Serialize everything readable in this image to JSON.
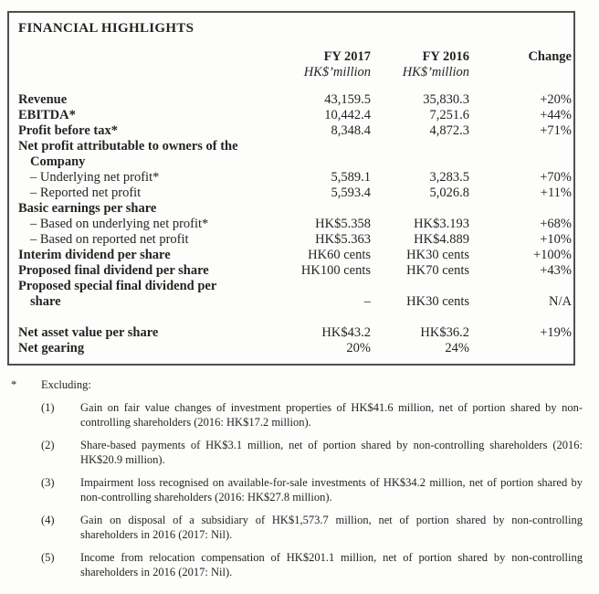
{
  "title": "FINANCIAL HIGHLIGHTS",
  "table": {
    "header": {
      "fy2017": "FY 2017",
      "fy2016": "FY 2016",
      "change": "Change",
      "unit": "HK$’million"
    },
    "rows": [
      {
        "label": "Revenue",
        "fy2017": "43,159.5",
        "fy2016": "35,830.3",
        "change": "+20%"
      },
      {
        "label": "EBITDA*",
        "fy2017": "10,442.4",
        "fy2016": "7,251.6",
        "change": "+44%"
      },
      {
        "label": "Profit before tax*",
        "fy2017": "8,348.4",
        "fy2016": "4,872.3",
        "change": "+71%"
      },
      {
        "label": "Net profit attributable to owners of the"
      },
      {
        "label": "Company"
      },
      {
        "label": "– Underlying net profit*",
        "fy2017": "5,589.1",
        "fy2016": "3,283.5",
        "change": "+70%"
      },
      {
        "label": "– Reported net profit",
        "fy2017": "5,593.4",
        "fy2016": "5,026.8",
        "change": "+11%"
      },
      {
        "label": "Basic earnings per share"
      },
      {
        "label": "– Based on underlying net profit*",
        "fy2017": "HK$5.358",
        "fy2016": "HK$3.193",
        "change": "+68%"
      },
      {
        "label": "– Based on reported net profit",
        "fy2017": "HK$5.363",
        "fy2016": "HK$4.889",
        "change": "+10%"
      },
      {
        "label": "Interim dividend per share",
        "fy2017": "HK60 cents",
        "fy2016": "HK30 cents",
        "change": "+100%"
      },
      {
        "label": "Proposed final dividend per share",
        "fy2017": "HK100 cents",
        "fy2016": "HK70 cents",
        "change": "+43%"
      },
      {
        "label": "Proposed special final dividend per"
      },
      {
        "label": "share",
        "fy2017": "–",
        "fy2016": "HK30 cents",
        "change": "N/A"
      },
      {
        "label": "Net asset value per share",
        "fy2017": "HK$43.2",
        "fy2016": "HK$36.2",
        "change": "+19%"
      },
      {
        "label": "Net gearing",
        "fy2017": "20%",
        "fy2016": "24%"
      }
    ]
  },
  "footnotes": {
    "marker": "*",
    "heading": "Excluding:",
    "items": [
      {
        "num": "(1)",
        "text": "Gain on fair value changes of investment properties of HK$41.6 million, net of portion shared by non-controlling shareholders (2016: HK$17.2 million)."
      },
      {
        "num": "(2)",
        "text": "Share-based payments of HK$3.1 million, net of portion shared by non-controlling shareholders (2016: HK$20.9 million)."
      },
      {
        "num": "(3)",
        "text": "Impairment loss recognised on available-for-sale investments of HK$34.2 million, net of portion shared by non-controlling shareholders (2016: HK$27.8 million)."
      },
      {
        "num": "(4)",
        "text": "Gain on disposal of a subsidiary of HK$1,573.7 million, net of portion shared by non-controlling shareholders in 2016 (2017: Nil)."
      },
      {
        "num": "(5)",
        "text": "Income from relocation compensation of HK$201.1 million, net of portion shared by non-controlling shareholders in 2016 (2017: Nil)."
      }
    ]
  }
}
